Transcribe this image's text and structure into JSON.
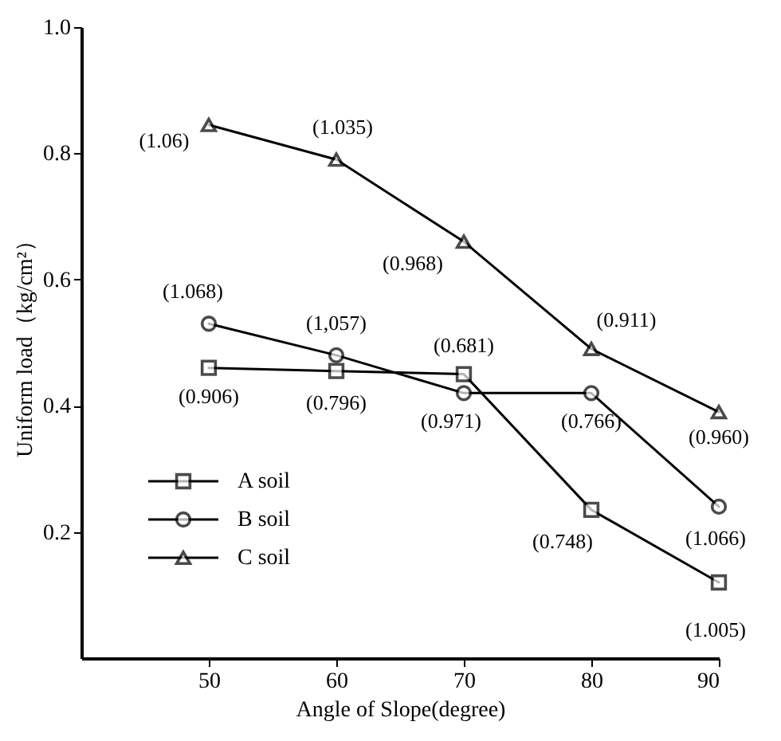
{
  "chart_data": {
    "type": "line",
    "xlabel": "Angle of Slope(degree)",
    "ylabel": "Uniform load（kg/cm²）",
    "x": [
      50,
      60,
      70,
      80,
      90
    ],
    "xlim": [
      40,
      90
    ],
    "xticks": [
      50,
      60,
      70,
      80,
      90
    ],
    "ylim": [
      0,
      1.0
    ],
    "yticks": [
      0.2,
      0.4,
      0.6,
      0.8,
      {
        "value": 1.0,
        "label": "1.0"
      }
    ],
    "grid": false,
    "legend": "left",
    "series": [
      {
        "name": "A soil",
        "color": "#000000",
        "marker": "square",
        "values": [
          0.46,
          0.455,
          0.45,
          0.235,
          0.12
        ]
      },
      {
        "name": "B soil",
        "color": "#000000",
        "marker": "circle",
        "values": [
          0.53,
          0.48,
          0.42,
          0.42,
          0.24
        ]
      },
      {
        "name": "C soil",
        "color": "#000000",
        "marker": "triangle",
        "values": [
          0.845,
          0.79,
          0.66,
          0.49,
          0.39
        ]
      }
    ],
    "annotations": [
      {
        "text": "(1.06)",
        "x": 50,
        "y": 0.845
      },
      {
        "text": "(1.035)",
        "x": 60,
        "y": 0.79
      },
      {
        "text": "(0.968)",
        "x": 70,
        "y": 0.66
      },
      {
        "text": "(0.911)",
        "x": 80,
        "y": 0.49
      },
      {
        "text": "(0.960)",
        "x": 90,
        "y": 0.39
      },
      {
        "text": "(1.068)",
        "x": 50,
        "y": 0.53
      },
      {
        "text": "(1,057)",
        "x": 60,
        "y": 0.48
      },
      {
        "text": "(0.971)",
        "x": 70,
        "y": 0.42
      },
      {
        "text": "(0.766)",
        "x": 80,
        "y": 0.42
      },
      {
        "text": "(1.066)",
        "x": 90,
        "y": 0.24
      },
      {
        "text": "(0.906)",
        "x": 50,
        "y": 0.46
      },
      {
        "text": "(0.796)",
        "x": 60,
        "y": 0.455
      },
      {
        "text": "(0.681)",
        "x": 70,
        "y": 0.45
      },
      {
        "text": "(0.748)",
        "x": 80,
        "y": 0.235
      },
      {
        "text": "(1.005)",
        "x": 90,
        "y": 0.12
      }
    ]
  }
}
